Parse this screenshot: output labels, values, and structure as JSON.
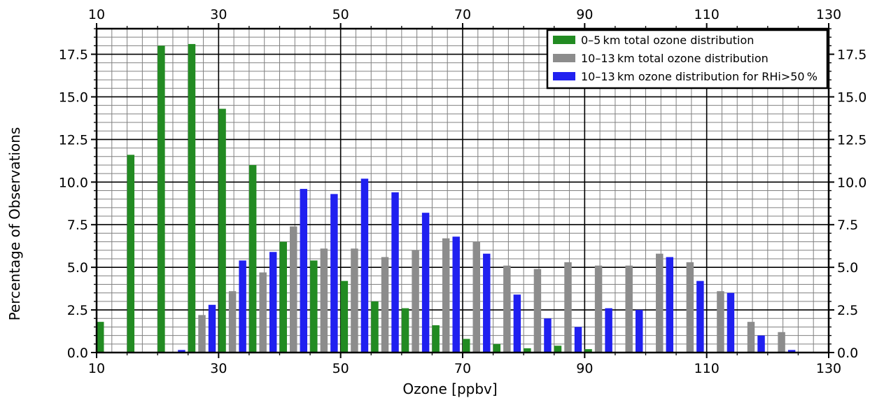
{
  "chart_data": {
    "type": "bar",
    "xlabel": "Ozone [ppbv]",
    "ylabel": "Percentage of Observations",
    "xlim": [
      10,
      130
    ],
    "ylim": [
      0,
      19
    ],
    "x_ticks": [
      10,
      30,
      50,
      70,
      90,
      110,
      130
    ],
    "y_ticks": [
      "0.0",
      "2.5",
      "5.0",
      "7.5",
      "10.0",
      "12.5",
      "15.0",
      "17.5"
    ],
    "bin_width": 5,
    "bin_starts": [
      10,
      15,
      20,
      25,
      30,
      35,
      40,
      45,
      50,
      55,
      60,
      65,
      70,
      75,
      80,
      85,
      90,
      95,
      100,
      105,
      110,
      115,
      120
    ],
    "grid": true,
    "legend_position": "top-right",
    "series": [
      {
        "name": "0–5 km total ozone distribution",
        "color": "#228b22",
        "values": [
          1.8,
          11.6,
          18.0,
          18.1,
          14.3,
          11.0,
          6.5,
          5.4,
          4.2,
          3.0,
          2.6,
          1.6,
          0.8,
          0.5,
          0.25,
          0.4,
          0.2,
          0,
          0,
          0,
          0,
          0,
          0
        ]
      },
      {
        "name": "10–13 km total ozone distribution",
        "color": "#8c8c8c",
        "values": [
          0,
          0,
          0,
          2.2,
          3.6,
          4.7,
          7.4,
          6.1,
          6.1,
          5.6,
          6.0,
          6.7,
          6.5,
          5.1,
          4.9,
          5.3,
          5.1,
          5.1,
          5.8,
          5.3,
          3.6,
          1.8,
          1.2
        ]
      },
      {
        "name": "10–13 km ozone distribution for RHi>50 %",
        "color": "#2020f0",
        "values": [
          0,
          0,
          0.15,
          2.8,
          5.4,
          5.9,
          9.6,
          9.3,
          10.2,
          9.4,
          8.2,
          6.8,
          5.8,
          3.4,
          2.0,
          1.5,
          2.6,
          2.5,
          5.6,
          4.2,
          3.5,
          1.0,
          0.15
        ]
      }
    ]
  }
}
